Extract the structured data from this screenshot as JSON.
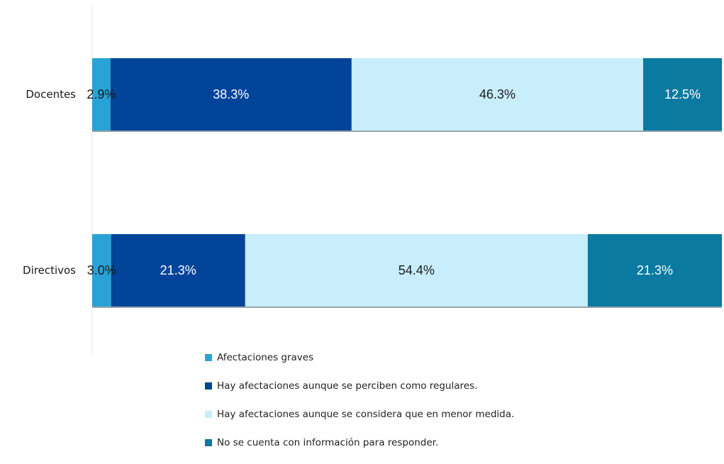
{
  "chart_data": {
    "type": "bar",
    "orientation": "horizontal",
    "stacked": true,
    "title": "",
    "xlabel": "",
    "ylabel": "",
    "xlim": [
      0,
      100
    ],
    "grid": false,
    "legend_position": "bottom",
    "categories": [
      "Docentes",
      "Directivos"
    ],
    "series": [
      {
        "name": "Afectaciones graves",
        "values": [
          2.9,
          3.0
        ],
        "labels": [
          "2.9%",
          "3.0%"
        ],
        "color": "#29a3d6",
        "label_color": "#1a1a1a"
      },
      {
        "name": "Hay afectaciones aunque se perciben como regulares.",
        "values": [
          38.3,
          21.3
        ],
        "labels": [
          "38.3%",
          "21.3%"
        ],
        "color": "#02449a",
        "label_color": "#ffffff"
      },
      {
        "name": "Hay afectaciones aunque se considera que en menor medida.",
        "values": [
          46.3,
          54.4
        ],
        "labels": [
          "46.3%",
          "54.4%"
        ],
        "color": "#c8eefb",
        "label_color": "#1a1a1a"
      },
      {
        "name": "No se cuenta con información para responder.",
        "values": [
          12.5,
          21.3
        ],
        "labels": [
          "12.5%",
          "21.3%"
        ],
        "color": "#0a7aa0",
        "label_color": "#ffffff"
      }
    ]
  }
}
